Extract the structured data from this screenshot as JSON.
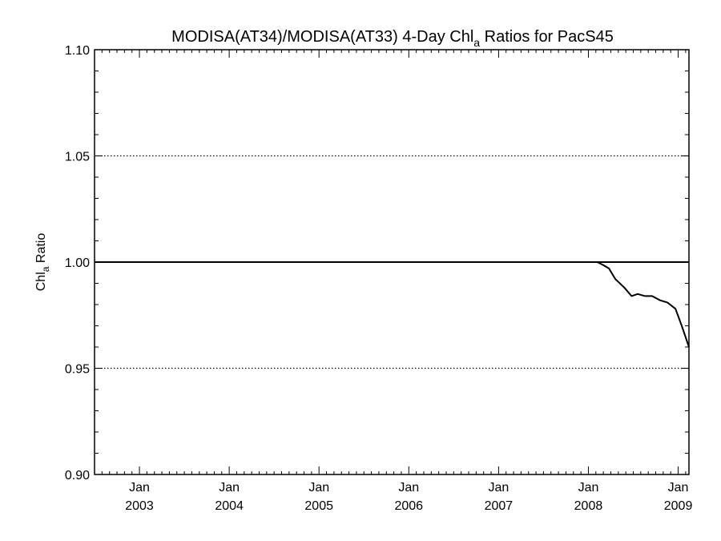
{
  "chart_data": {
    "type": "line",
    "title_main": "MODISA(AT34)/MODISA(AT33) 4-Day Chl",
    "title_sub": "a",
    "title_tail": " Ratios for PacS45",
    "ylabel_main": "Chl",
    "ylabel_sub": "a",
    "ylabel_tail": " Ratio",
    "xlabel": "",
    "ylim": [
      0.9,
      1.1
    ],
    "xlim": [
      2002.5,
      2009.12
    ],
    "y_ticks": [
      {
        "value": 0.9,
        "label": "0.90"
      },
      {
        "value": 0.95,
        "label": "0.95"
      },
      {
        "value": 1.0,
        "label": "1.00"
      },
      {
        "value": 1.05,
        "label": "1.05"
      },
      {
        "value": 1.1,
        "label": "1.10"
      }
    ],
    "x_ticks": [
      {
        "value": 2003.0,
        "line1": "Jan",
        "line2": "2003"
      },
      {
        "value": 2004.0,
        "line1": "Jan",
        "line2": "2004"
      },
      {
        "value": 2005.0,
        "line1": "Jan",
        "line2": "2005"
      },
      {
        "value": 2006.0,
        "line1": "Jan",
        "line2": "2006"
      },
      {
        "value": 2007.0,
        "line1": "Jan",
        "line2": "2007"
      },
      {
        "value": 2008.0,
        "line1": "Jan",
        "line2": "2008"
      },
      {
        "value": 2009.0,
        "line1": "Jan",
        "line2": "2009"
      }
    ],
    "grid_y": [
      0.95,
      1.0,
      1.05
    ],
    "reference_line": 1.0,
    "series": [
      {
        "color": "#000000",
        "x": [
          2002.5,
          2003.0,
          2004.0,
          2005.0,
          2006.0,
          2007.0,
          2008.0,
          2008.04,
          2008.1,
          2008.17,
          2008.23,
          2008.3,
          2008.4,
          2008.48,
          2008.55,
          2008.63,
          2008.71,
          2008.8,
          2008.88,
          2008.97,
          2009.04,
          2009.12
        ],
        "y": [
          1.0,
          1.0,
          1.0,
          1.0,
          1.0,
          1.0,
          1.0,
          1.0,
          1.0,
          0.9985,
          0.997,
          0.992,
          0.988,
          0.984,
          0.985,
          0.984,
          0.984,
          0.982,
          0.981,
          0.978,
          0.97,
          0.96
        ]
      }
    ]
  }
}
